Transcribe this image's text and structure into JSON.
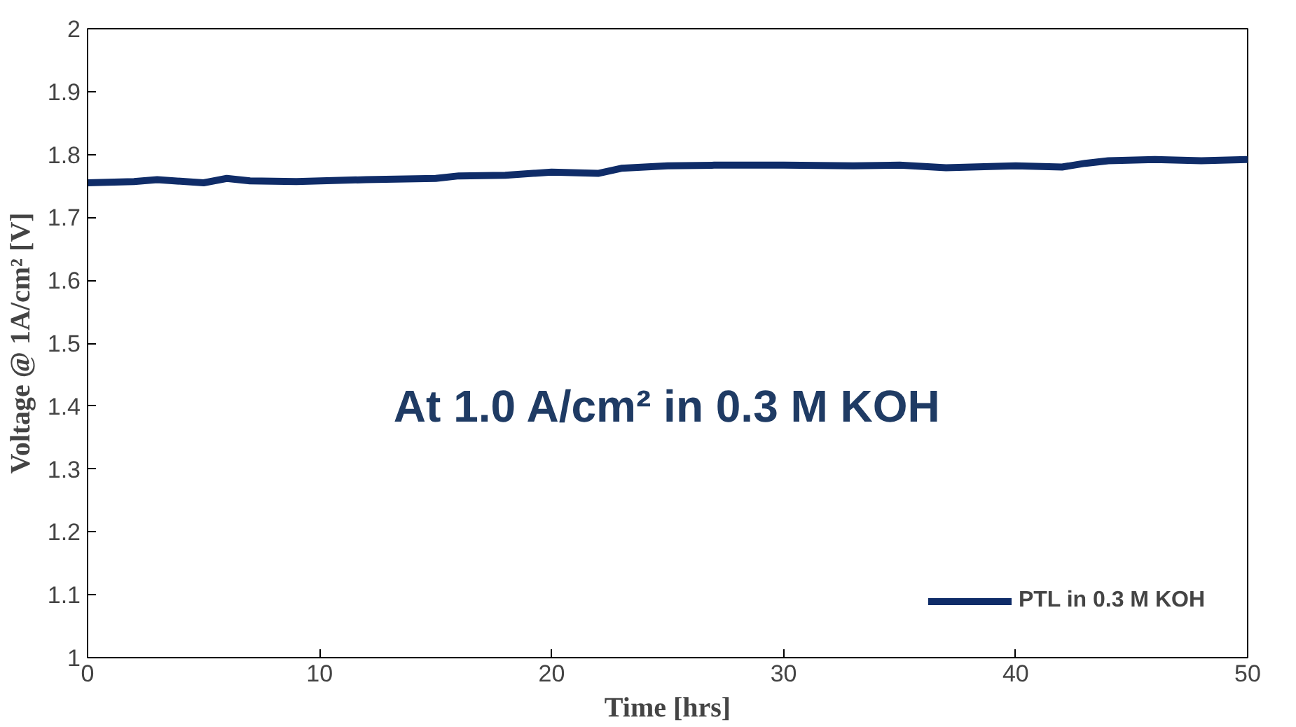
{
  "chart_data": {
    "type": "line",
    "xlabel": "Time [hrs]",
    "ylabel": "Voltage @ 1A/cm² [V]",
    "annotations": [
      "At 1.0 A/cm² in 0.3 M KOH"
    ],
    "xlim": [
      0,
      50
    ],
    "xticks": [
      0,
      10,
      20,
      30,
      40,
      50
    ],
    "ylim": [
      1,
      2
    ],
    "yticks": [
      1,
      1.1,
      1.2,
      1.3,
      1.4,
      1.5,
      1.6,
      1.7,
      1.8,
      1.9,
      2
    ],
    "grid": false,
    "legend": "bottom right",
    "marker": "none",
    "line_style": "solid",
    "series": [
      {
        "name": "PTL in 0.3 M KOH",
        "color": "#0f2c68",
        "x": [
          0,
          2,
          3,
          5,
          6,
          7,
          9,
          12,
          15,
          16,
          18,
          20,
          22,
          23,
          25,
          27,
          30,
          33,
          35,
          37,
          40,
          42,
          43,
          44,
          46,
          48,
          50
        ],
        "values": [
          1.755,
          1.757,
          1.76,
          1.755,
          1.762,
          1.758,
          1.757,
          1.76,
          1.762,
          1.766,
          1.767,
          1.772,
          1.77,
          1.778,
          1.782,
          1.783,
          1.783,
          1.782,
          1.783,
          1.779,
          1.782,
          1.78,
          1.786,
          1.79,
          1.792,
          1.79,
          1.792
        ]
      }
    ]
  }
}
